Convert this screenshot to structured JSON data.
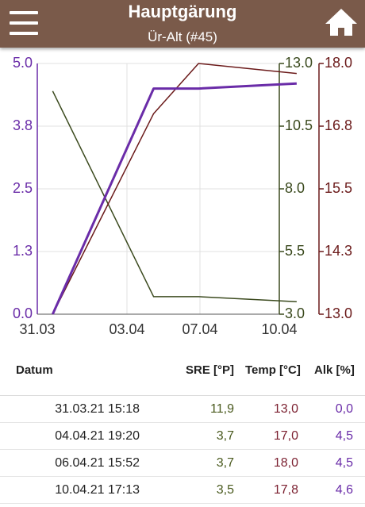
{
  "header": {
    "title": "Hauptgärung",
    "subtitle": "Ür-Alt (#45)",
    "menu_icon": "hamburger-menu-icon",
    "home_icon": "home-icon",
    "color": "#7a5a4a"
  },
  "chart_data": {
    "type": "line",
    "x": [
      "31.03.21 15:18",
      "04.04.21 19:20",
      "06.04.21 15:52",
      "10.04.21 17:13"
    ],
    "x_tick_labels": [
      "31.03",
      "03.04",
      "07.04",
      "10.04"
    ],
    "xlim": [
      "31.03.21",
      "10.04.21"
    ],
    "grid": true,
    "series": [
      {
        "axis": "sre",
        "color": "#3b4a1e",
        "values": [
          11.9,
          3.7,
          3.7,
          3.5
        ]
      },
      {
        "axis": "temp",
        "color": "#6b1a1a",
        "values": [
          13.0,
          17.0,
          18.0,
          17.8
        ]
      },
      {
        "axis": "alk",
        "color": "#6a2ca8",
        "values": [
          0.0,
          4.5,
          4.5,
          4.6
        ]
      }
    ],
    "axes": {
      "alk": {
        "ylim": [
          0,
          5
        ],
        "ticks": [
          "0.0",
          "1.3",
          "2.5",
          "3.8",
          "5.0"
        ],
        "color": "#6a2ca8"
      },
      "sre": {
        "ylim": [
          3,
          13
        ],
        "ticks": [
          "3.0",
          "5.5",
          "8.0",
          "10.5",
          "13.0"
        ],
        "color": "#3b4a1e"
      },
      "temp": {
        "ylim": [
          13,
          18
        ],
        "ticks": [
          "13.0",
          "14.3",
          "15.5",
          "16.8",
          "18.0"
        ],
        "color": "#6b1a1a"
      }
    }
  },
  "table": {
    "headers": {
      "datum": "Datum",
      "sre": "SRE [°P]",
      "temp": "Temp [°C]",
      "alk": "Alk [%]"
    },
    "rows": [
      {
        "datum": "31.03.21 15:18",
        "sre": "11,9",
        "temp": "13,0",
        "alk": "0,0"
      },
      {
        "datum": "04.04.21 19:20",
        "sre": "3,7",
        "temp": "17,0",
        "alk": "4,5"
      },
      {
        "datum": "06.04.21 15:52",
        "sre": "3,7",
        "temp": "18,0",
        "alk": "4,5"
      },
      {
        "datum": "10.04.21 17:13",
        "sre": "3,5",
        "temp": "17,8",
        "alk": "4,6"
      }
    ]
  }
}
